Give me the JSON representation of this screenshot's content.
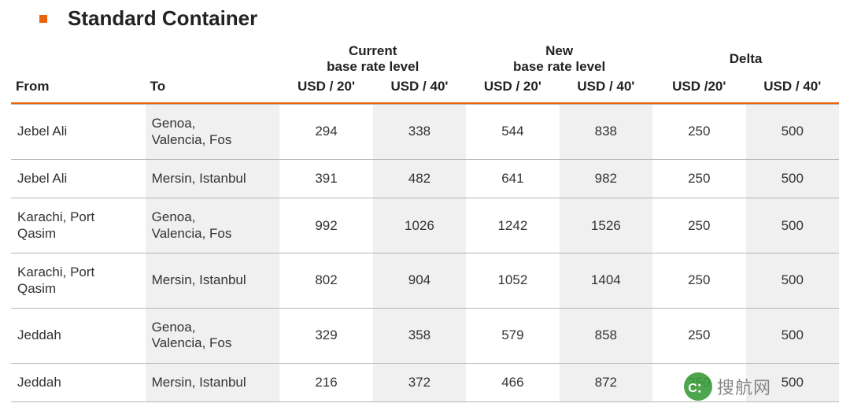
{
  "title": "Standard Container",
  "accent_color": "#ec6408",
  "shade_color": "#f0f0f0",
  "row_border_color": "#b5b5b5",
  "text_color": "#222222",
  "header": {
    "from": "From",
    "to": "To",
    "group_current_l1": "Current",
    "group_current_l2": "base rate level",
    "group_new_l1": "New",
    "group_new_l2": "base rate level",
    "group_delta": "Delta",
    "usd20": "USD / 20'",
    "usd40": "USD / 40'",
    "usd20_delta": "USD /20'",
    "usd40_delta": "USD / 40'"
  },
  "rows": [
    {
      "from": "Jebel Ali",
      "to": "Genoa,\nValencia, Fos",
      "c20": 294,
      "c40": 338,
      "n20": 544,
      "n40": 838,
      "d20": 250,
      "d40": 500
    },
    {
      "from": "Jebel Ali",
      "to": "Mersin, Istanbul",
      "c20": 391,
      "c40": 482,
      "n20": 641,
      "n40": 982,
      "d20": 250,
      "d40": 500
    },
    {
      "from": "Karachi, Port\nQasim",
      "to": "Genoa,\nValencia, Fos",
      "c20": 992,
      "c40": 1026,
      "n20": 1242,
      "n40": 1526,
      "d20": 250,
      "d40": 500
    },
    {
      "from": "Karachi, Port\nQasim",
      "to": "Mersin, Istanbul",
      "c20": 802,
      "c40": 904,
      "n20": 1052,
      "n40": 1404,
      "d20": 250,
      "d40": 500
    },
    {
      "from": "Jeddah",
      "to": "Genoa,\nValencia, Fos",
      "c20": 329,
      "c40": 358,
      "n20": 579,
      "n40": 858,
      "d20": 250,
      "d40": 500
    },
    {
      "from": "Jeddah",
      "to": "Mersin, Istanbul",
      "c20": 216,
      "c40": 372,
      "n20": 466,
      "n40": 872,
      "d20": 250,
      "d40": 500
    }
  ],
  "watermark": {
    "label": "搜航网",
    "icon_text": "C："
  }
}
